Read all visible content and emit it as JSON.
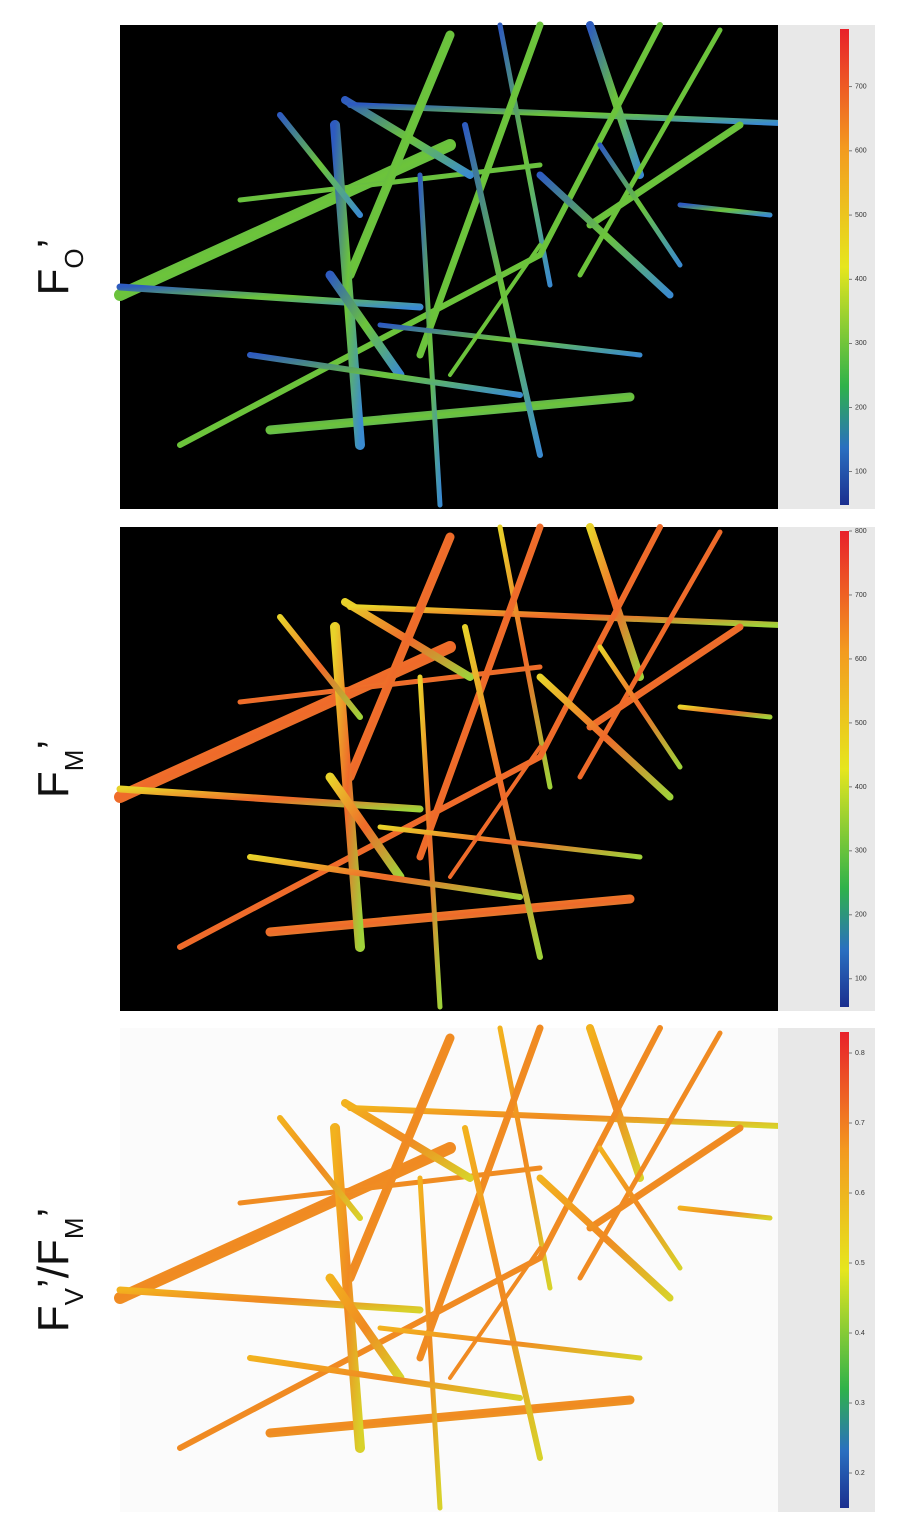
{
  "panels": [
    {
      "label_parts": [
        {
          "text": "F"
        },
        {
          "text": "O",
          "subscript": true
        },
        {
          "text": "’"
        }
      ],
      "colorbar": {
        "lim": [
          48,
          790
        ],
        "ticks": [
          100,
          200,
          300,
          400,
          500,
          600,
          700
        ]
      }
    },
    {
      "label_parts": [
        {
          "text": "F"
        },
        {
          "text": "M",
          "subscript": true
        },
        {
          "text": "’"
        }
      ],
      "colorbar": {
        "lim": [
          56,
          800
        ],
        "ticks": [
          100,
          200,
          300,
          400,
          500,
          600,
          700,
          800
        ]
      }
    },
    {
      "label_parts": [
        {
          "text": "F"
        },
        {
          "text": "V",
          "subscript": true
        },
        {
          "text": "’/F"
        },
        {
          "text": "M",
          "subscript": true
        },
        {
          "text": "’"
        }
      ],
      "colorbar": {
        "lim": [
          0.15,
          0.83
        ],
        "ticks": [
          0.2,
          0.3,
          0.4,
          0.5,
          0.6,
          0.7,
          0.8
        ]
      }
    }
  ]
}
